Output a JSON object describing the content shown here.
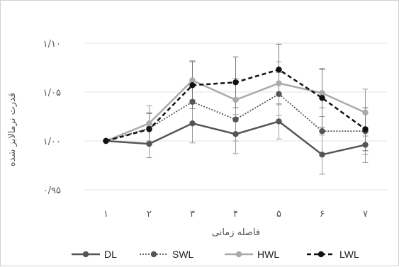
{
  "chart_data": {
    "type": "line",
    "xlabel": "فاصله زمانی",
    "ylabel": "قدرت نرمالایز شده",
    "categories": [
      "۱",
      "۲",
      "۳",
      "۴",
      "۵",
      "۶",
      "۷"
    ],
    "ylim": [
      0.95,
      1.1
    ],
    "yticks": [
      0.95,
      1.0,
      1.05,
      1.1
    ],
    "ytick_labels": [
      "۰/۹۵",
      "۱/۰۰",
      "۱/۰۵",
      "۱/۱۰"
    ],
    "grid": true,
    "legend_position": "bottom",
    "series": [
      {
        "name": "DL",
        "color": "#555555",
        "dash": "solid",
        "values": [
          1.0,
          0.997,
          1.018,
          1.007,
          1.02,
          0.986,
          0.996
        ],
        "errors": [
          0.0,
          0.014,
          0.02,
          0.02,
          0.018,
          0.02,
          0.018
        ]
      },
      {
        "name": "SWL",
        "color": "#555555",
        "dash": "dotted",
        "values": [
          1.0,
          1.013,
          1.04,
          1.022,
          1.048,
          1.01,
          1.01
        ],
        "errors": [
          0.0,
          0.016,
          0.022,
          0.022,
          0.022,
          0.024,
          0.024
        ]
      },
      {
        "name": "HWL",
        "color": "#aaaaaa",
        "dash": "solid",
        "values": [
          1.0,
          1.018,
          1.062,
          1.042,
          1.059,
          1.049,
          1.029
        ],
        "errors": [
          0.0,
          0.018,
          0.02,
          0.022,
          0.022,
          0.024,
          0.024
        ]
      },
      {
        "name": "LWL",
        "color": "#111111",
        "dash": "dashed",
        "values": [
          1.0,
          1.012,
          1.057,
          1.06,
          1.073,
          1.044,
          1.012
        ],
        "errors": [
          0.0,
          0.016,
          0.024,
          0.026,
          0.026,
          0.03,
          0.022
        ]
      }
    ]
  }
}
